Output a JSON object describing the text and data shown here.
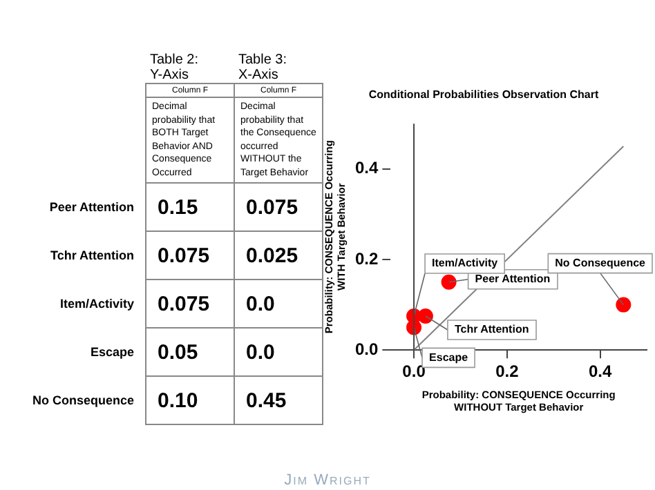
{
  "chart_data": [
    {
      "type": "other",
      "categories": [
        "Peer Attention",
        "Tchr Attention",
        "Item/Activity",
        "Escape",
        "No Consequence"
      ],
      "series": [
        {
          "name": "Table 2:\nY-Axis",
          "values": [
            0.15,
            0.075,
            0.075,
            0.05,
            0.1
          ],
          "value_labels": [
            "0.15",
            "0.075",
            "0.075",
            "0.05",
            "0.10"
          ]
        },
        {
          "name": "Table 3:\nX-Axis",
          "values": [
            0.075,
            0.025,
            0.0,
            0.0,
            0.45
          ],
          "value_labels": [
            "0.075",
            "0.025",
            "0.0",
            "0.0",
            "0.45"
          ]
        }
      ],
      "annotations": [
        "Column F",
        "Decimal probability that BOTH Target Behavior AND Consequence Occurred",
        "Column F",
        "Decimal probability that the Consequence occurred WITHOUT the Target Behavior",
        "Jim Wright"
      ]
    },
    {
      "type": "scatter",
      "title": "Conditional Probabilities Observation Chart",
      "xlabel": "Probability: CONSEQUENCE Occurring\nWITHOUT Target Behavior",
      "ylabel": "Probability: CONSEQUENCE Occurring\nWITH Target Behavior",
      "series": [
        {
          "type": "scatter",
          "color": "#ff0000",
          "x": [
            0.075,
            0.025,
            0.0,
            0.0,
            0.45
          ],
          "values": [
            0.15,
            0.075,
            0.075,
            0.05,
            0.1
          ]
        },
        {
          "type": "line",
          "color": "#808080",
          "x": [
            0,
            0.45
          ],
          "values": [
            0,
            0.45
          ]
        }
      ],
      "xlim": [
        -0.05,
        0.5
      ],
      "ylim": [
        0,
        0.5
      ],
      "xticks": [
        {
          "value": 0,
          "label": "0.0"
        },
        {
          "value": 0.2,
          "label": "0.2"
        },
        {
          "value": 0.4,
          "label": "0.4"
        }
      ],
      "yticks": [
        {
          "value": 0,
          "label": "0.0"
        },
        {
          "value": 0.2,
          "label": "0.2"
        },
        {
          "value": 0.4,
          "label": "0.4"
        }
      ],
      "annotations": [
        {
          "text": "Peer Attention",
          "x": 0.075,
          "y": 0.15
        },
        {
          "text": "Tchr Attention",
          "x": 0.025,
          "y": 0.075
        },
        {
          "text": "Item/Activity",
          "x": 0.0,
          "y": 0.075
        },
        {
          "text": "Escape",
          "x": 0.0,
          "y": 0.05
        },
        {
          "text": "No Consequence",
          "x": 0.45,
          "y": 0.1
        }
      ]
    }
  ]
}
